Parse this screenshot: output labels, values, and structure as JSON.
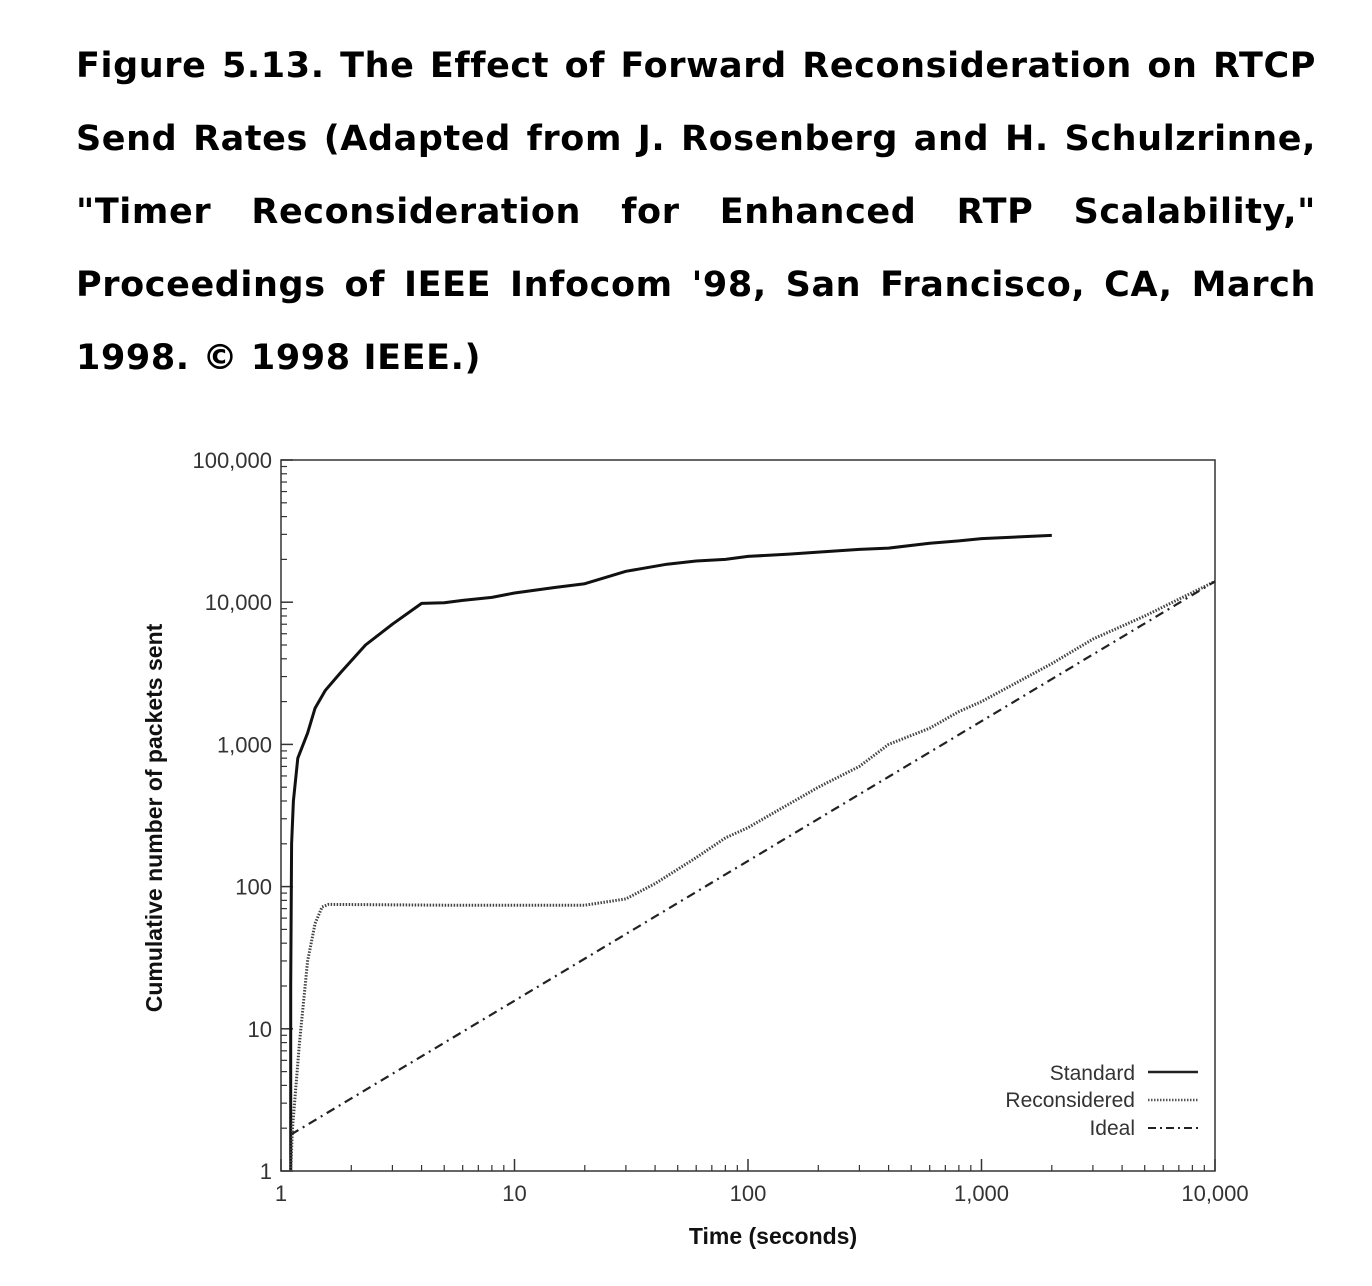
{
  "caption": "Figure 5.13. The Effect of Forward Reconsideration on RTCP Send Rates (Adapted from J. Rosenberg and H. Schulzrinne, \"Timer Reconsideration for Enhanced RTP Scalability,\" Proceedings of IEEE Infocom '98, San Francisco, CA, March 1998. © 1998 IEEE.)",
  "chart_data": {
    "type": "line",
    "xscale": "log",
    "yscale": "log",
    "xlabel": "Time (seconds)",
    "ylabel": "Cumulative number of packets sent",
    "xlim": [
      1,
      10000
    ],
    "ylim": [
      1,
      100000
    ],
    "xticks": [
      {
        "value": 1,
        "label": "1"
      },
      {
        "value": 10,
        "label": "10"
      },
      {
        "value": 100,
        "label": "100"
      },
      {
        "value": 1000,
        "label": "1,000"
      },
      {
        "value": 10000,
        "label": "10,000"
      }
    ],
    "yticks": [
      {
        "value": 1,
        "label": "1"
      },
      {
        "value": 10,
        "label": "10"
      },
      {
        "value": 100,
        "label": "100"
      },
      {
        "value": 1000,
        "label": "1,000"
      },
      {
        "value": 10000,
        "label": "10,000"
      },
      {
        "value": 100000,
        "label": "100,000"
      }
    ],
    "legend_position": "bottom-right",
    "series": [
      {
        "name": "Standard",
        "style": "solid",
        "points": [
          [
            1.1,
            1
          ],
          [
            1.1,
            20
          ],
          [
            1.11,
            200
          ],
          [
            1.13,
            400
          ],
          [
            1.18,
            800
          ],
          [
            1.3,
            1200
          ],
          [
            1.4,
            1800
          ],
          [
            1.55,
            2400
          ],
          [
            1.8,
            3200
          ],
          [
            2.3,
            5000
          ],
          [
            3,
            7000
          ],
          [
            4,
            9800
          ],
          [
            5,
            9900
          ],
          [
            6,
            10300
          ],
          [
            8,
            10800
          ],
          [
            10,
            11600
          ],
          [
            15,
            12700
          ],
          [
            20,
            13500
          ],
          [
            30,
            16500
          ],
          [
            45,
            18500
          ],
          [
            60,
            19500
          ],
          [
            80,
            20000
          ],
          [
            100,
            21000
          ],
          [
            150,
            21800
          ],
          [
            200,
            22500
          ],
          [
            300,
            23500
          ],
          [
            400,
            24000
          ],
          [
            600,
            26000
          ],
          [
            800,
            27000
          ],
          [
            1000,
            28000
          ],
          [
            2000,
            29500
          ]
        ]
      },
      {
        "name": "Reconsidered",
        "style": "dotted",
        "points": [
          [
            1.1,
            1
          ],
          [
            1.12,
            2
          ],
          [
            1.2,
            8
          ],
          [
            1.3,
            30
          ],
          [
            1.4,
            55
          ],
          [
            1.5,
            72
          ],
          [
            1.6,
            75
          ],
          [
            5,
            74
          ],
          [
            10,
            74
          ],
          [
            20,
            74
          ],
          [
            30,
            82
          ],
          [
            40,
            105
          ],
          [
            60,
            160
          ],
          [
            80,
            220
          ],
          [
            100,
            260
          ],
          [
            200,
            500
          ],
          [
            300,
            700
          ],
          [
            400,
            1000
          ],
          [
            600,
            1300
          ],
          [
            800,
            1700
          ],
          [
            1000,
            2000
          ],
          [
            2000,
            3700
          ],
          [
            3000,
            5500
          ],
          [
            5000,
            8000
          ],
          [
            10000,
            14000
          ]
        ]
      },
      {
        "name": "Ideal",
        "style": "dash-dot",
        "points": [
          [
            1.1,
            1.8
          ],
          [
            10000,
            14000
          ]
        ]
      }
    ]
  }
}
